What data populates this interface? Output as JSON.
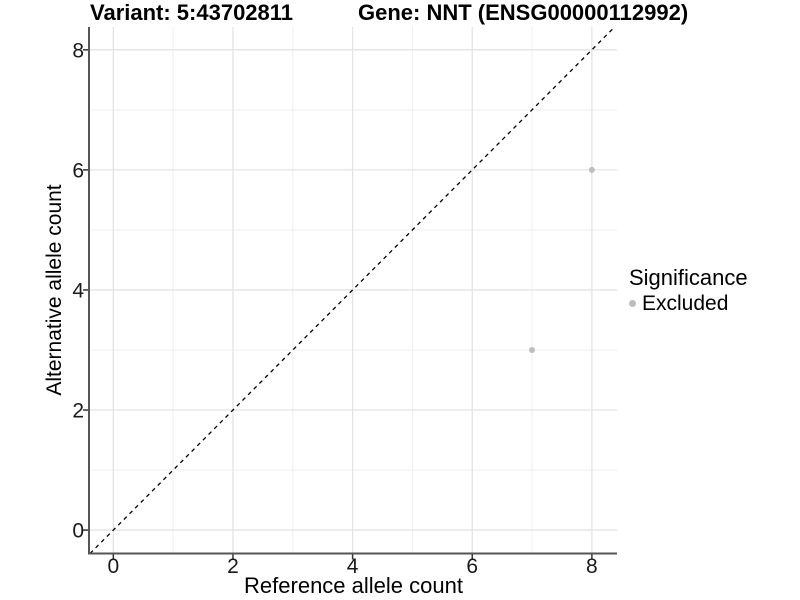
{
  "chart_data": {
    "type": "scatter",
    "title_left": "Variant: 5:43702811",
    "title_right": "Gene: NNT (ENSG00000112992)",
    "xlabel": "Reference allele count",
    "ylabel": "Alternative allele count",
    "xlim": [
      -0.39,
      8.42
    ],
    "ylim": [
      -0.39,
      8.38
    ],
    "x_major_ticks": [
      0,
      2,
      4,
      6,
      8
    ],
    "y_major_ticks": [
      0,
      2,
      4,
      6,
      8
    ],
    "x_minor_gridlines": [
      1,
      3,
      5,
      7
    ],
    "y_minor_gridlines": [
      1,
      3,
      5,
      7
    ],
    "grid": true,
    "series": [
      {
        "name": "Excluded",
        "color": "#bebebe",
        "points": [
          {
            "x": 8,
            "y": 6
          },
          {
            "x": 7,
            "y": 3
          }
        ]
      }
    ],
    "reference_line": {
      "type": "identity",
      "equation": "y = x",
      "style": "dashed",
      "color": "#000000"
    },
    "legend": {
      "title": "Significance",
      "position": "right",
      "items": [
        {
          "label": "Excluded",
          "color": "#bdbdbd"
        }
      ]
    },
    "colors": {
      "major_gridline": "#e3e3e3",
      "minor_gridline": "#efefef",
      "axis_line": "#555555",
      "tick_mark": "#333333",
      "tick_label": "#1a1a1a",
      "point": "#bebebe",
      "background": "#ffffff"
    }
  }
}
